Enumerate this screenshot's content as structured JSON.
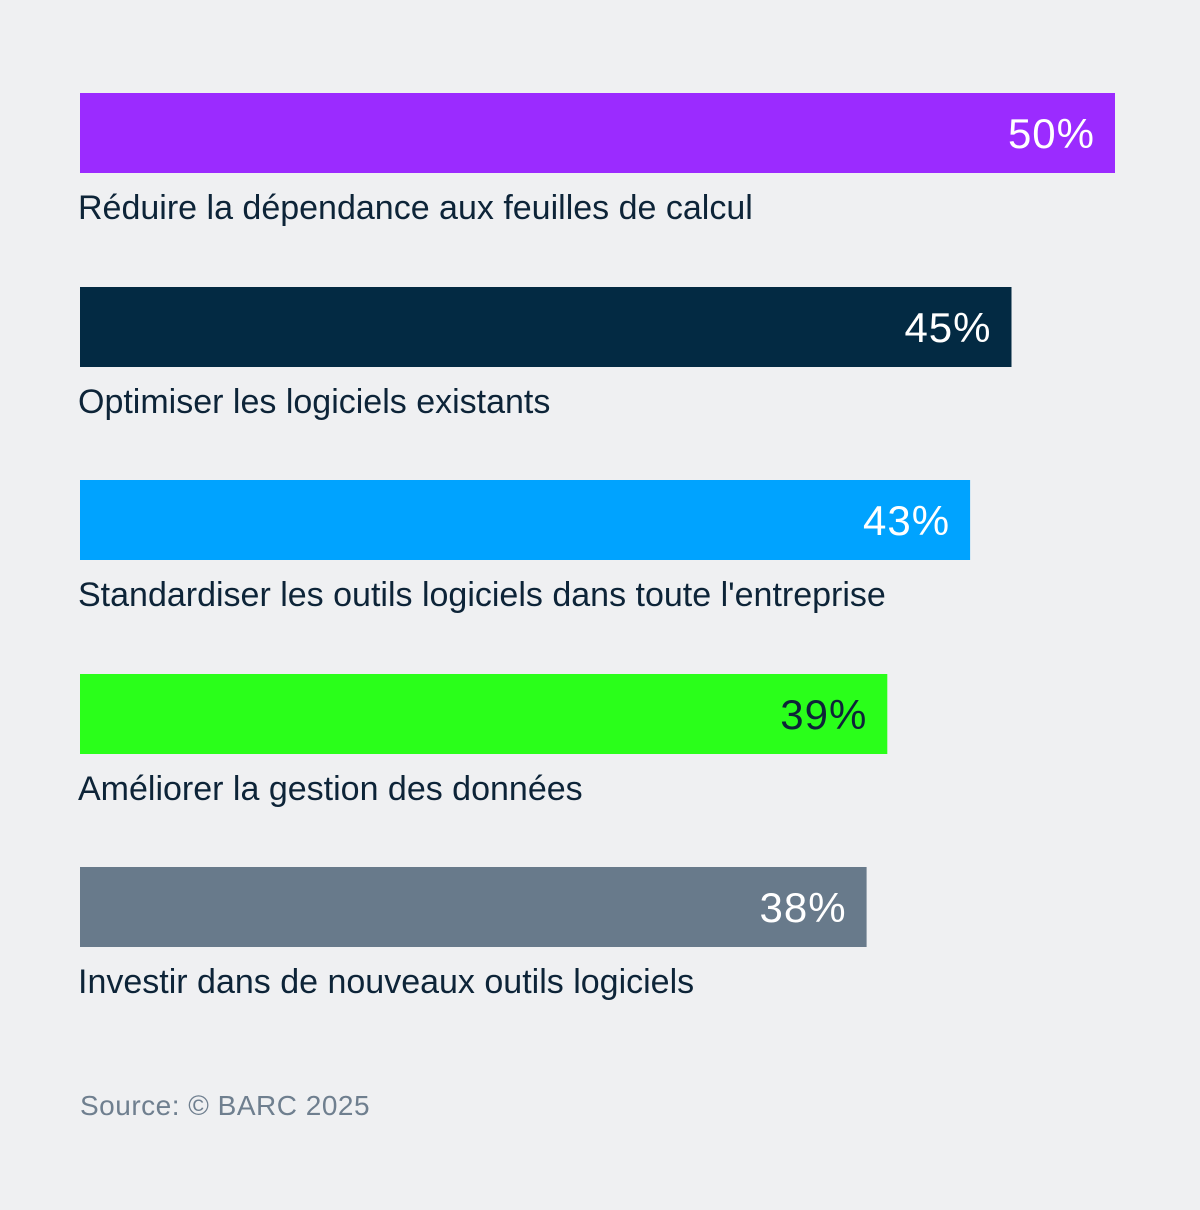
{
  "chart_data": {
    "type": "bar",
    "orientation": "horizontal",
    "categories": [
      "Réduire la dépendance aux feuilles de calcul",
      "Optimiser les logiciels existants",
      "Standardiser les outils logiciels dans toute l'entreprise",
      "Améliorer la gestion des données",
      "Investir dans de nouveaux outils logiciels"
    ],
    "values": [
      50,
      45,
      43,
      39,
      38
    ],
    "value_labels": [
      "50%",
      "45%",
      "43%",
      "39%",
      "38%"
    ],
    "colors": [
      "#9b2bff",
      "#032a43",
      "#00a3ff",
      "#2aff1a",
      "#687a8b"
    ],
    "value_label_colors": [
      "#ffffff",
      "#ffffff",
      "#ffffff",
      "#0d2438",
      "#ffffff"
    ],
    "unit": "%",
    "xlim": [
      0,
      50
    ],
    "title": "",
    "xlabel": "",
    "ylabel": "",
    "grid": false
  },
  "footer": {
    "source": "Source: © BARC 2025"
  }
}
